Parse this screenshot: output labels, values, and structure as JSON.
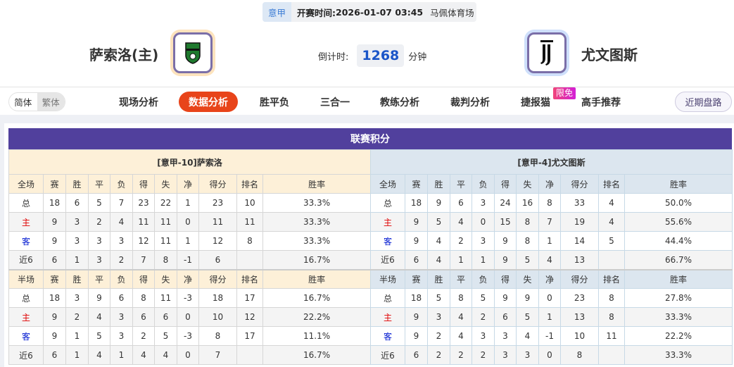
{
  "match": {
    "league": "意甲",
    "kickoff_label": "开赛时间:",
    "kickoff": "2026-01-07 03:45",
    "venue": "马佩体育场"
  },
  "home": {
    "name": "萨索洛(主)",
    "logo": "sassuolo-crest"
  },
  "away": {
    "name": "尤文图斯",
    "logo": "juventus-crest"
  },
  "countdown": {
    "label": "倒计时:",
    "value": "1268",
    "unit": "分钟"
  },
  "nav": {
    "lang": [
      "简体",
      "繁体"
    ],
    "tabs": [
      "现场分析",
      "数据分析",
      "胜平负",
      "三合一",
      "教练分析",
      "裁判分析",
      "捷报猫",
      "高手推荐"
    ],
    "active": "数据分析",
    "badge": "限免",
    "recent": "近期盘路"
  },
  "standings": {
    "title": "联赛积分",
    "columns": [
      "赛",
      "胜",
      "平",
      "负",
      "得",
      "失",
      "净",
      "得分",
      "排名",
      "胜率"
    ],
    "home": {
      "caption": "[意甲-10]萨索洛",
      "full": {
        "label": "全场",
        "rows": [
          [
            "总",
            "18",
            "6",
            "5",
            "7",
            "23",
            "22",
            "1",
            "23",
            "10",
            "33.3%"
          ],
          [
            "主",
            "9",
            "3",
            "2",
            "4",
            "11",
            "11",
            "0",
            "11",
            "11",
            "33.3%"
          ],
          [
            "客",
            "9",
            "3",
            "3",
            "3",
            "12",
            "11",
            "1",
            "12",
            "8",
            "33.3%"
          ],
          [
            "近6",
            "6",
            "1",
            "3",
            "2",
            "7",
            "8",
            "-1",
            "6",
            "",
            "16.7%"
          ]
        ]
      },
      "half": {
        "label": "半场",
        "rows": [
          [
            "总",
            "18",
            "3",
            "9",
            "6",
            "8",
            "11",
            "-3",
            "18",
            "17",
            "16.7%"
          ],
          [
            "主",
            "9",
            "2",
            "4",
            "3",
            "6",
            "6",
            "0",
            "10",
            "12",
            "22.2%"
          ],
          [
            "客",
            "9",
            "1",
            "5",
            "3",
            "2",
            "5",
            "-3",
            "8",
            "17",
            "11.1%"
          ],
          [
            "近6",
            "6",
            "1",
            "4",
            "1",
            "4",
            "4",
            "0",
            "7",
            "",
            "16.7%"
          ]
        ]
      }
    },
    "away": {
      "caption": "[意甲-4]尤文图斯",
      "full": {
        "label": "全场",
        "rows": [
          [
            "总",
            "18",
            "9",
            "6",
            "3",
            "24",
            "16",
            "8",
            "33",
            "4",
            "50.0%"
          ],
          [
            "主",
            "9",
            "5",
            "4",
            "0",
            "15",
            "8",
            "7",
            "19",
            "4",
            "55.6%"
          ],
          [
            "客",
            "9",
            "4",
            "2",
            "3",
            "9",
            "8",
            "1",
            "14",
            "5",
            "44.4%"
          ],
          [
            "近6",
            "6",
            "4",
            "1",
            "1",
            "9",
            "5",
            "4",
            "13",
            "",
            "66.7%"
          ]
        ]
      },
      "half": {
        "label": "半场",
        "rows": [
          [
            "总",
            "18",
            "5",
            "8",
            "5",
            "9",
            "9",
            "0",
            "23",
            "8",
            "27.8%"
          ],
          [
            "主",
            "9",
            "3",
            "4",
            "2",
            "6",
            "5",
            "1",
            "13",
            "8",
            "33.3%"
          ],
          [
            "客",
            "9",
            "2",
            "4",
            "3",
            "3",
            "4",
            "-1",
            "10",
            "11",
            "22.2%"
          ],
          [
            "近6",
            "6",
            "2",
            "2",
            "2",
            "3",
            "3",
            "0",
            "8",
            "",
            "33.3%"
          ]
        ]
      }
    }
  },
  "colors": {
    "accent": "#e8441a",
    "title_bar": "#51409d",
    "home_row": "#e00000",
    "away_row": "#0018d0",
    "countdown": "#1a55c8"
  }
}
